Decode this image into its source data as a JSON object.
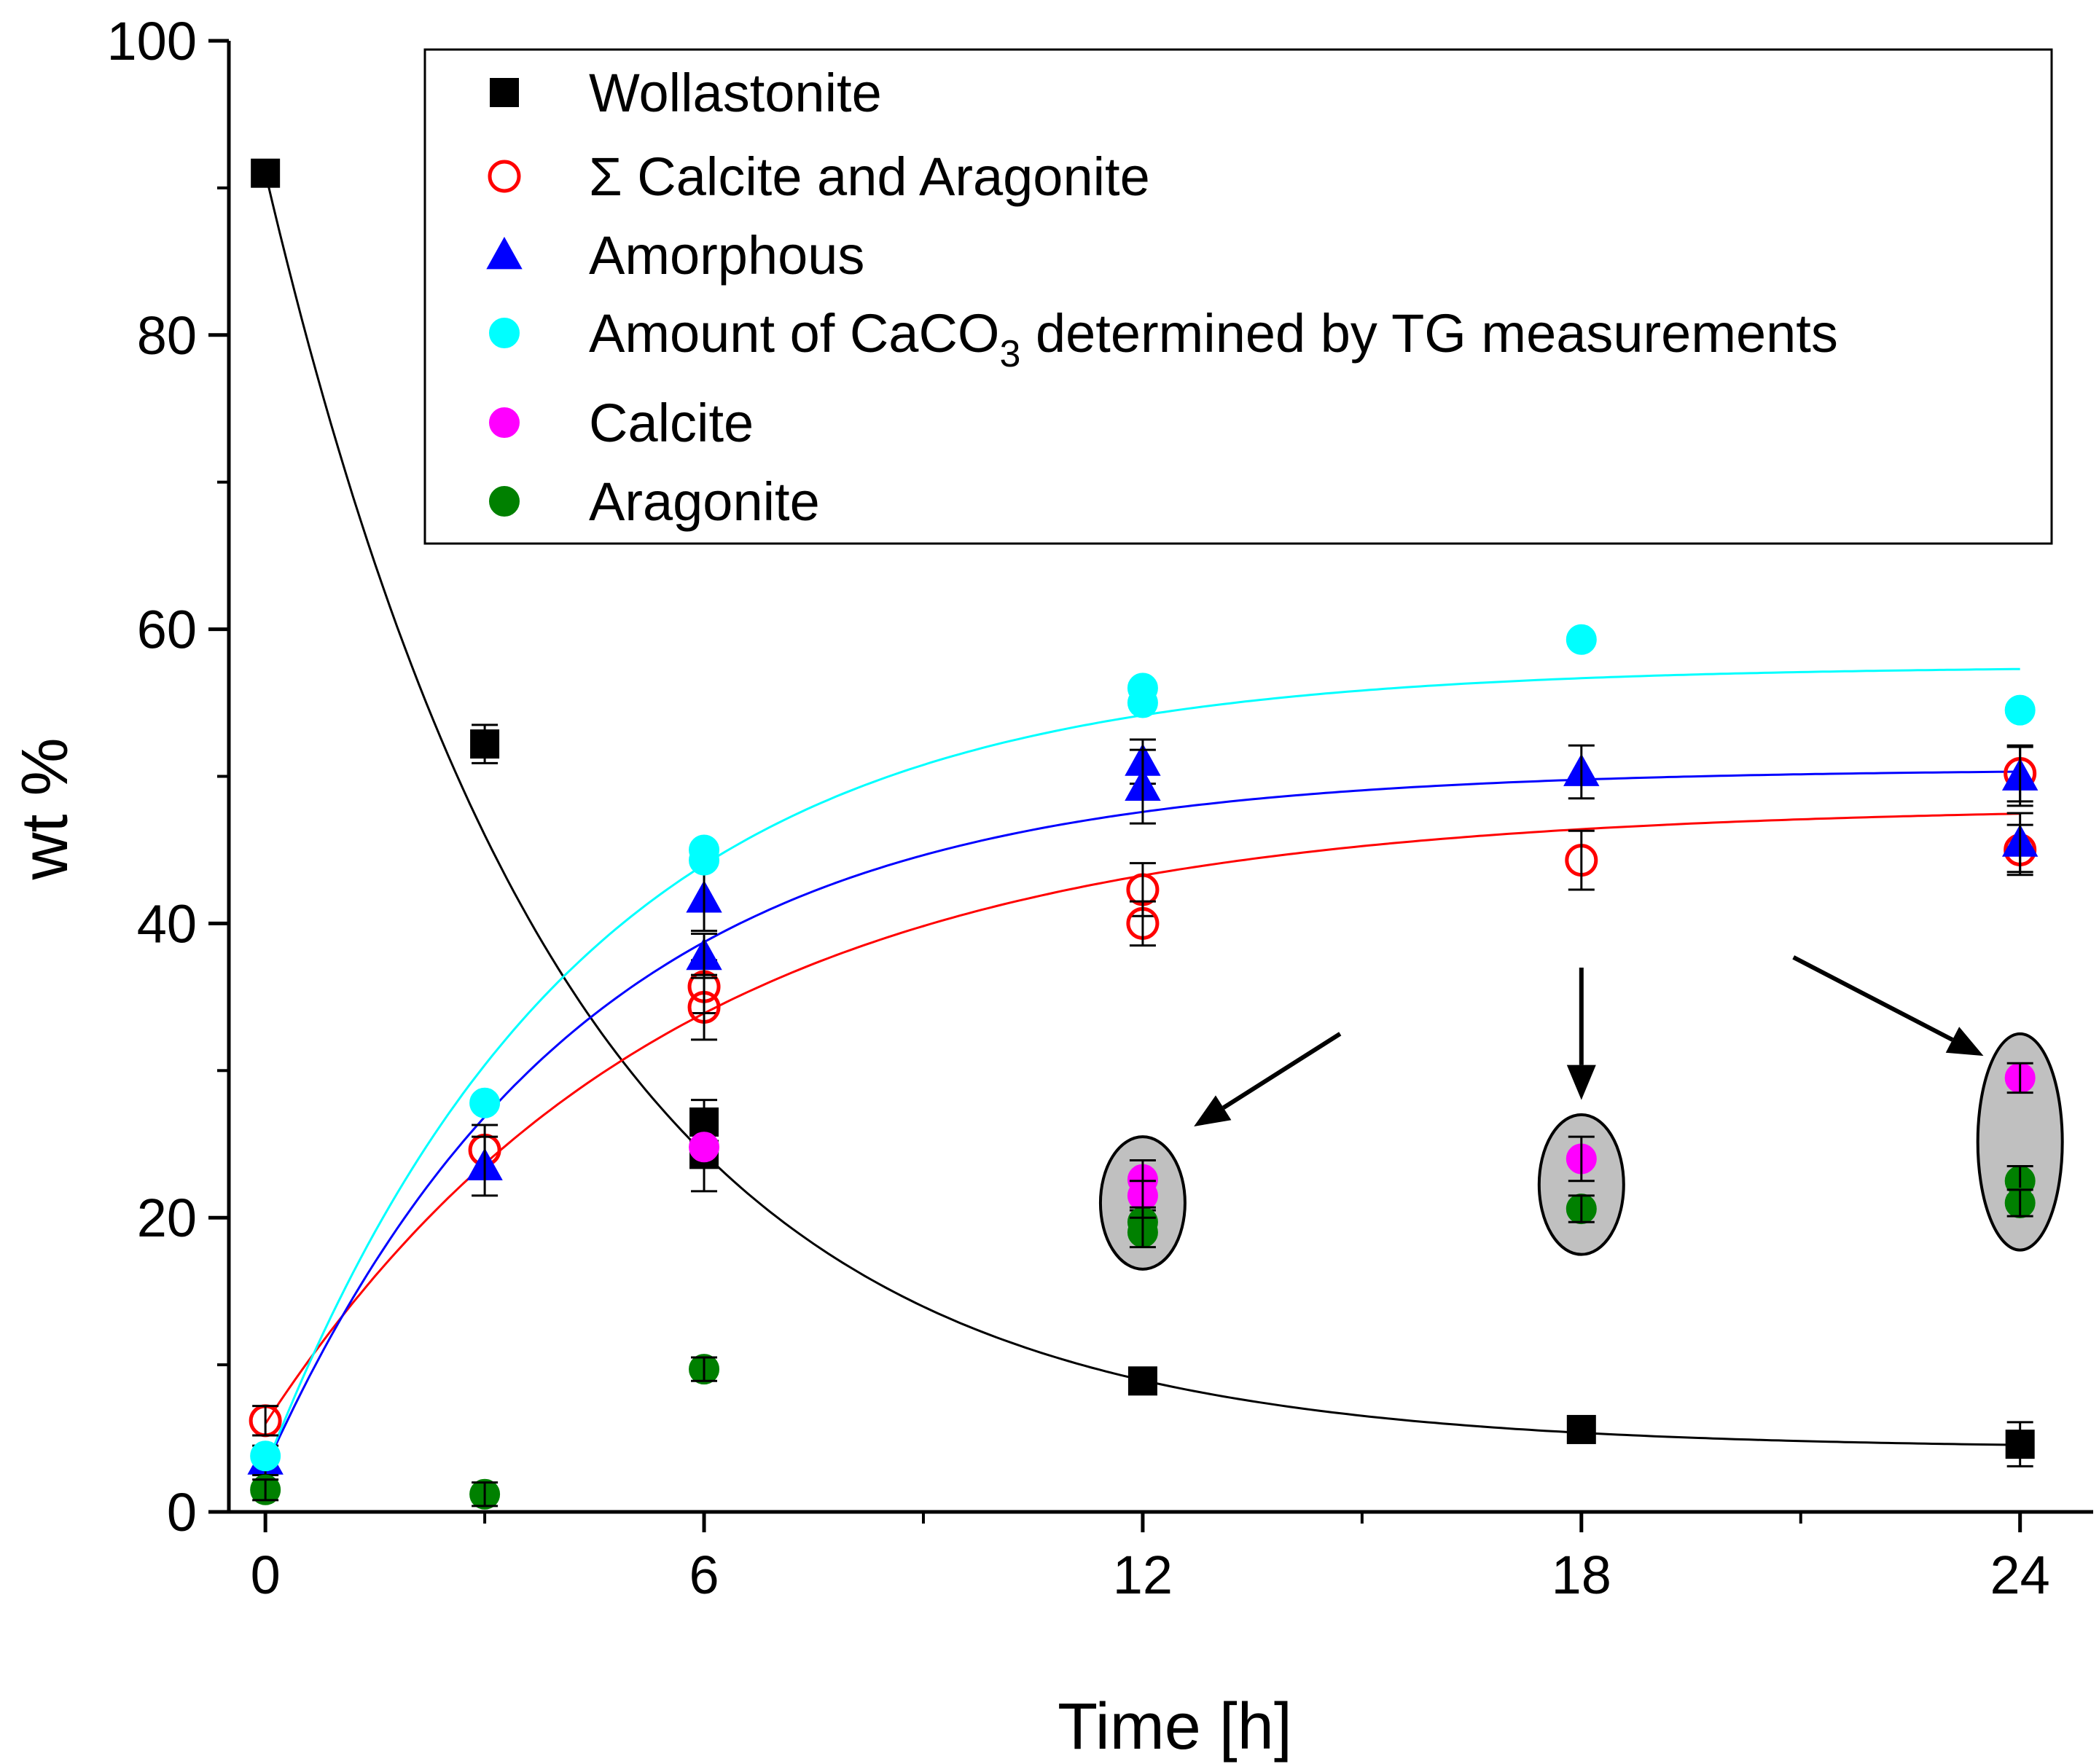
{
  "chart_data": {
    "type": "scatter",
    "xlabel": "Time [h]",
    "ylabel": "wt %",
    "xlim": [
      -0.5,
      25
    ],
    "ylim": [
      0,
      100
    ],
    "xticks": [
      0,
      6,
      12,
      18,
      24
    ],
    "xtick_labels": [
      "0",
      "6",
      "12",
      "18",
      "24"
    ],
    "yticks": [
      0,
      20,
      40,
      60,
      80,
      100
    ],
    "ytick_labels": [
      "0",
      "20",
      "40",
      "60",
      "80",
      "100"
    ],
    "x_minor_ticks": [
      3,
      9,
      15,
      21
    ],
    "y_minor_ticks": [
      10,
      30,
      50,
      70,
      90
    ],
    "legend": {
      "position": "top-right",
      "entries": [
        {
          "series": "Wollastonite",
          "label": "Wollastonite"
        },
        {
          "series": "Calcite+Aragonite",
          "label": "Σ Calcite and Aragonite"
        },
        {
          "series": "Amorphous",
          "label": "Amorphous"
        },
        {
          "series": "CaCO3-TG",
          "label_parts": [
            "Amount of CaCO",
            "3",
            " determined by TG measurements"
          ]
        },
        {
          "series": "Calcite",
          "label": "Calcite"
        },
        {
          "series": "Aragonite",
          "label": "Aragonite"
        }
      ]
    },
    "series": [
      {
        "name": "Wollastonite",
        "marker": "square",
        "color": "#000000",
        "filled": true,
        "points": [
          [
            0,
            91,
            0.8
          ],
          [
            3,
            52.2,
            1.3
          ],
          [
            6,
            26.5,
            1.5
          ],
          [
            6,
            24.3,
            2.5
          ],
          [
            12,
            8.9,
            0.8
          ],
          [
            18,
            5.6,
            0.6
          ],
          [
            24,
            4.6,
            1.5
          ]
        ]
      },
      {
        "name": "Calcite+Aragonite",
        "marker": "circle",
        "color": "#ff0000",
        "filled": false,
        "points": [
          [
            0,
            6.2,
            1.0
          ],
          [
            3,
            24.6,
            1.7
          ],
          [
            6,
            35.7,
            1.8
          ],
          [
            6,
            34.3,
            2.2
          ],
          [
            12,
            42.3,
            1.8
          ],
          [
            12,
            40.0,
            1.5
          ],
          [
            18,
            44.3,
            2.0
          ],
          [
            24,
            50.2,
            1.9
          ],
          [
            24,
            45.0,
            1.7
          ]
        ]
      },
      {
        "name": "Amorphous",
        "marker": "triangle",
        "color": "#0000ff",
        "filled": true,
        "points": [
          [
            0,
            3.5,
            1.0
          ],
          [
            3,
            23.5,
            2.0
          ],
          [
            6,
            41.7,
            2.2
          ],
          [
            6,
            37.8,
            1.5
          ],
          [
            12,
            51.0,
            1.5
          ],
          [
            12,
            49.3,
            2.5
          ],
          [
            18,
            50.3,
            1.8
          ],
          [
            24,
            50.0,
            2.0
          ],
          [
            24,
            45.5,
            2.0
          ]
        ]
      },
      {
        "name": "CaCO3-TG",
        "marker": "circle",
        "color": "#00ffff",
        "filled": true,
        "points": [
          [
            0,
            3.8,
            0
          ],
          [
            3,
            27.8,
            0
          ],
          [
            6,
            45.0,
            0
          ],
          [
            6,
            44.3,
            0
          ],
          [
            12,
            56.0,
            0
          ],
          [
            12,
            55.0,
            0
          ],
          [
            18,
            59.3,
            0
          ],
          [
            24,
            54.5,
            0
          ]
        ]
      },
      {
        "name": "Calcite",
        "marker": "circle",
        "color": "#ff00ff",
        "filled": true,
        "points": [
          [
            6,
            24.8,
            0
          ],
          [
            12,
            22.6,
            1.3
          ],
          [
            12,
            21.5,
            1.0
          ],
          [
            18,
            24.0,
            1.5
          ],
          [
            24,
            29.5,
            1.0
          ]
        ]
      },
      {
        "name": "Aragonite",
        "marker": "circle",
        "color": "#008000",
        "filled": true,
        "points": [
          [
            0,
            1.5,
            0.7
          ],
          [
            3,
            1.2,
            0.8
          ],
          [
            6,
            9.7,
            0.8
          ],
          [
            12,
            19.7,
            1.0
          ],
          [
            12,
            19.0,
            1.0
          ],
          [
            18,
            20.6,
            0.9
          ],
          [
            24,
            22.5,
            1.0
          ],
          [
            24,
            21.0,
            0.9
          ]
        ]
      }
    ],
    "fits": [
      {
        "name": "Wollastonite fit",
        "color": "#000000",
        "model": "exp-decay",
        "y0": 91,
        "yinf": 4.3,
        "tau": 4.1
      },
      {
        "name": "Σ Calcite and Aragonite fit",
        "color": "#ff0000",
        "model": "exp-rise",
        "y0": 6,
        "yinf": 48,
        "tau": 5.5
      },
      {
        "name": "Amorphous fit",
        "color": "#0000ff",
        "model": "exp-rise",
        "y0": 3,
        "yinf": 50.5,
        "tau": 4.3
      },
      {
        "name": "CaCO3-TG fit",
        "color": "#00ffff",
        "model": "exp-rise",
        "y0": 3,
        "yinf": 57.5,
        "tau": 4.3
      }
    ],
    "annotations": [
      {
        "type": "highlight-ellipse",
        "x": 12,
        "y_low": 16.5,
        "y_high": 25.5,
        "fill": "#c0c0c0"
      },
      {
        "type": "highlight-ellipse",
        "x": 18,
        "y_low": 17.5,
        "y_high": 27.0,
        "fill": "#c0c0c0"
      },
      {
        "type": "highlight-ellipse",
        "x": 24,
        "y_low": 17.8,
        "y_high": 32.5,
        "fill": "#c0c0c0"
      },
      {
        "type": "arrow",
        "from": [
          14.7,
          32.5
        ],
        "to": [
          12.7,
          26.2
        ]
      },
      {
        "type": "arrow",
        "from": [
          18,
          37.0
        ],
        "to": [
          18,
          28.0
        ]
      },
      {
        "type": "arrow",
        "from": [
          20.9,
          37.7
        ],
        "to": [
          23.5,
          31.0
        ]
      }
    ]
  }
}
